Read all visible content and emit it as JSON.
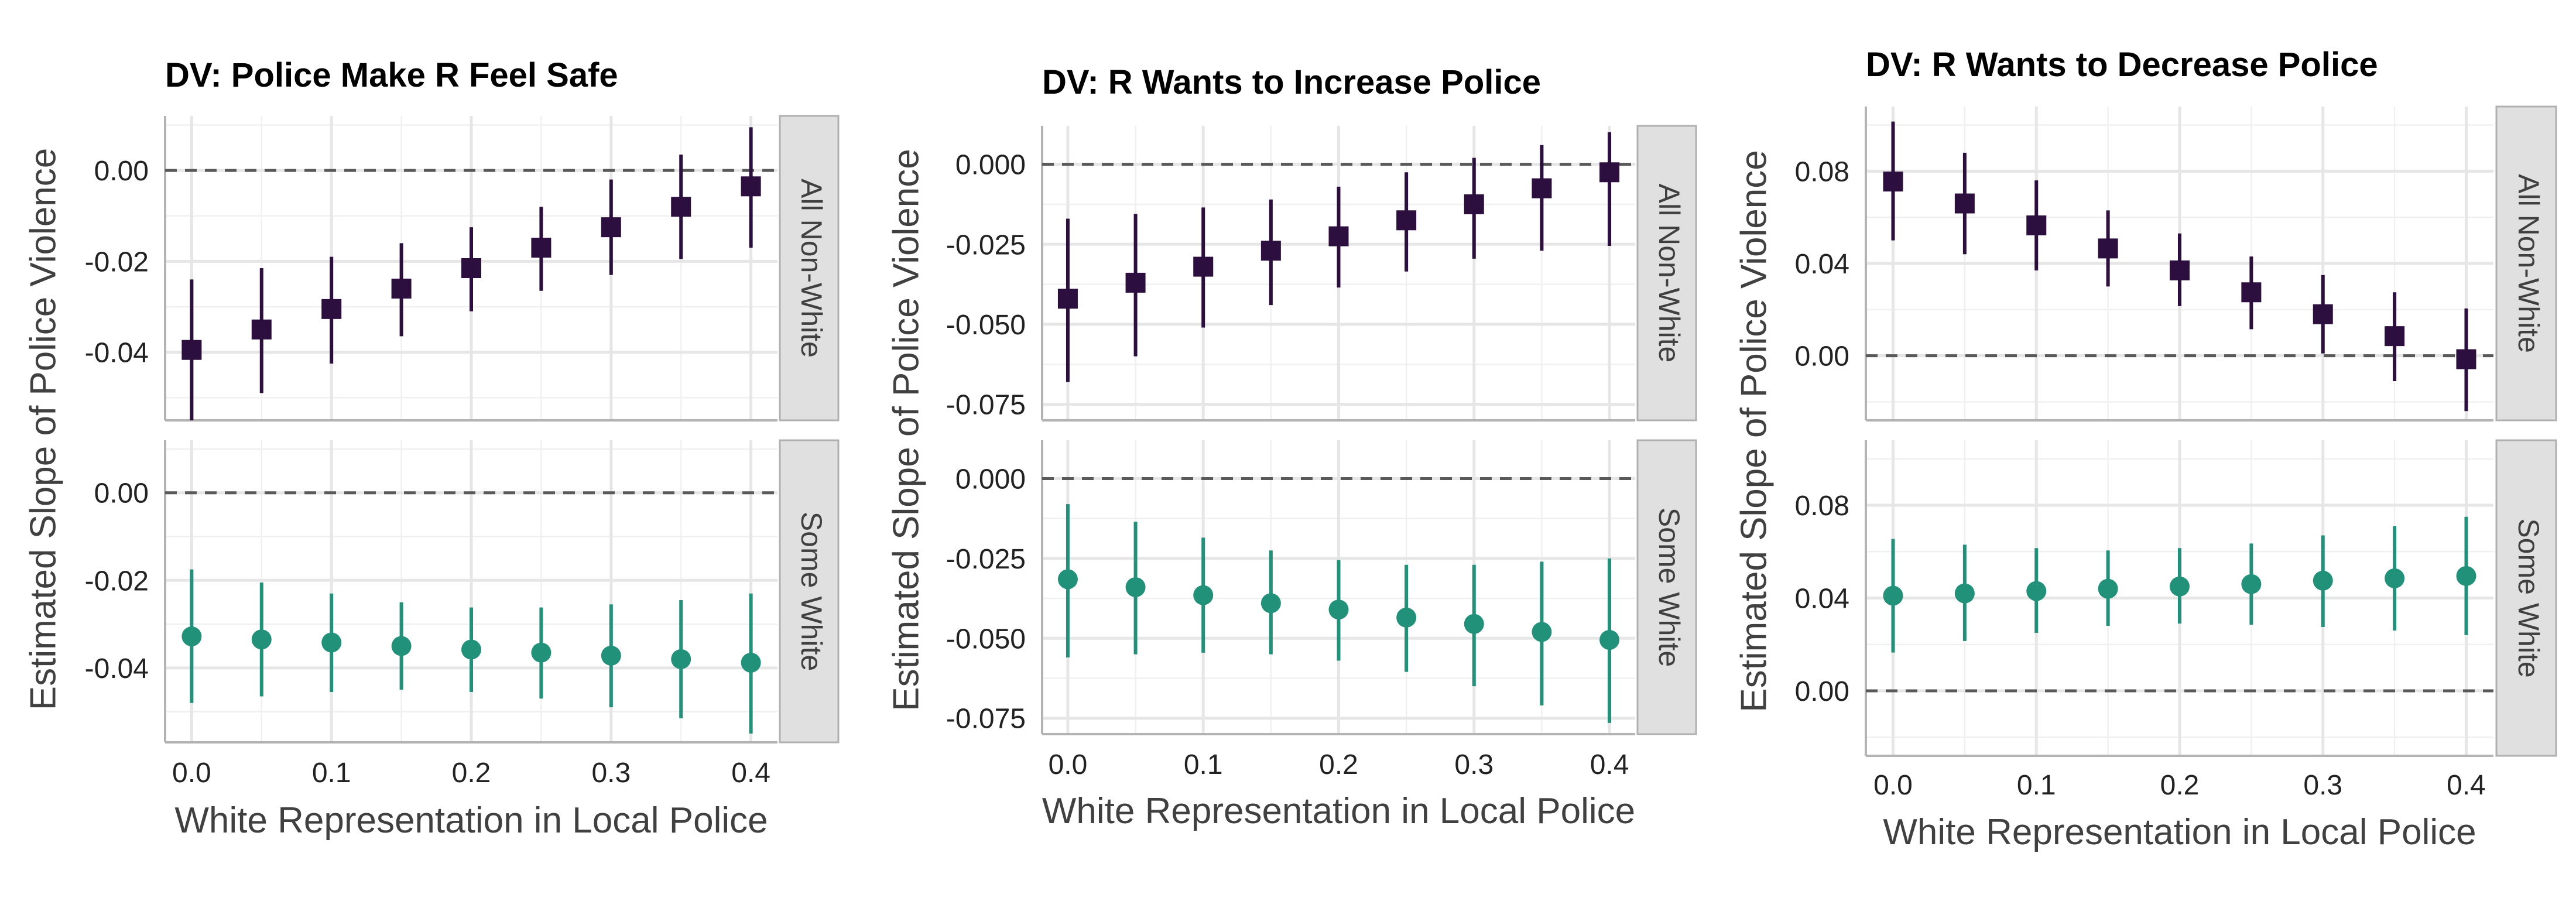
{
  "chart_data": [
    {
      "type": "scatter",
      "title": "DV: Police Make R Feel Safe",
      "xlabel": "White Representation in Local Police",
      "ylabel": "Estimated Slope of Police Violence",
      "x": [
        0.0,
        0.05,
        0.1,
        0.15,
        0.2,
        0.25,
        0.3,
        0.35,
        0.4
      ],
      "x_ticks": [
        "0.0",
        "0.1",
        "0.2",
        "0.3",
        "0.4"
      ],
      "reference_line": 0,
      "grid": true,
      "facets": [
        {
          "strip": "All Non-White",
          "marker": "square",
          "color": "#2d0f3f",
          "y_ticks": [
            "0.00",
            "-0.02",
            "-0.04"
          ],
          "ylim": [
            -0.055,
            0.012
          ],
          "values": [
            -0.0395,
            -0.035,
            -0.0305,
            -0.026,
            -0.0215,
            -0.017,
            -0.0125,
            -0.008,
            -0.0035
          ],
          "lower": [
            -0.055,
            -0.049,
            -0.0425,
            -0.0365,
            -0.031,
            -0.0265,
            -0.023,
            -0.0195,
            -0.017
          ],
          "upper": [
            -0.024,
            -0.0215,
            -0.019,
            -0.016,
            -0.0125,
            -0.008,
            -0.002,
            0.0035,
            0.0095
          ]
        },
        {
          "strip": "Some White",
          "marker": "circle",
          "color": "#21917a",
          "y_ticks": [
            "0.00",
            "-0.02",
            "-0.04"
          ],
          "ylim": [
            -0.057,
            0.012
          ],
          "values": [
            -0.0328,
            -0.0335,
            -0.0342,
            -0.035,
            -0.0358,
            -0.0365,
            -0.0372,
            -0.038,
            -0.0388
          ],
          "lower": [
            -0.048,
            -0.0465,
            -0.0455,
            -0.045,
            -0.0455,
            -0.047,
            -0.049,
            -0.0515,
            -0.055
          ],
          "upper": [
            -0.0175,
            -0.0205,
            -0.023,
            -0.025,
            -0.0262,
            -0.0262,
            -0.0255,
            -0.0245,
            -0.023
          ]
        }
      ]
    },
    {
      "type": "scatter",
      "title": "DV: R Wants to Increase Police",
      "xlabel": "White Representation in Local Police",
      "ylabel": "Estimated Slope of Police Violence",
      "x": [
        0.0,
        0.05,
        0.1,
        0.15,
        0.2,
        0.25,
        0.3,
        0.35,
        0.4
      ],
      "x_ticks": [
        "0.0",
        "0.1",
        "0.2",
        "0.3",
        "0.4"
      ],
      "reference_line": 0,
      "grid": true,
      "facets": [
        {
          "strip": "All Non-White",
          "marker": "square",
          "color": "#2d0f3f",
          "y_ticks": [
            "0.000",
            "-0.025",
            "-0.050",
            "-0.075"
          ],
          "ylim": [
            -0.08,
            0.012
          ],
          "values": [
            -0.042,
            -0.037,
            -0.032,
            -0.027,
            -0.0225,
            -0.0175,
            -0.0125,
            -0.0075,
            -0.0025
          ],
          "lower": [
            -0.068,
            -0.06,
            -0.051,
            -0.044,
            -0.0385,
            -0.0335,
            -0.0295,
            -0.027,
            -0.0255
          ],
          "upper": [
            -0.017,
            -0.0155,
            -0.0135,
            -0.011,
            -0.007,
            -0.0025,
            0.002,
            0.006,
            0.01
          ]
        },
        {
          "strip": "Some White",
          "marker": "circle",
          "color": "#21917a",
          "y_ticks": [
            "0.000",
            "-0.025",
            "-0.050",
            "-0.075"
          ],
          "ylim": [
            -0.08,
            0.012
          ],
          "values": [
            -0.0315,
            -0.034,
            -0.0365,
            -0.039,
            -0.041,
            -0.0435,
            -0.0455,
            -0.048,
            -0.0505
          ],
          "lower": [
            -0.056,
            -0.055,
            -0.0545,
            -0.055,
            -0.057,
            -0.0605,
            -0.065,
            -0.071,
            -0.0765
          ],
          "upper": [
            -0.008,
            -0.0135,
            -0.0185,
            -0.0225,
            -0.0255,
            -0.027,
            -0.027,
            -0.026,
            -0.025
          ]
        }
      ]
    },
    {
      "type": "scatter",
      "title": "DV: R Wants to Decrease Police",
      "xlabel": "White Representation in Local Police",
      "ylabel": "Estimated Slope of Police Violence",
      "x": [
        0.0,
        0.05,
        0.1,
        0.15,
        0.2,
        0.25,
        0.3,
        0.35,
        0.4
      ],
      "x_ticks": [
        "0.0",
        "0.1",
        "0.2",
        "0.3",
        "0.4"
      ],
      "reference_line": 0,
      "grid": true,
      "facets": [
        {
          "strip": "All Non-White",
          "marker": "square",
          "color": "#2d0f3f",
          "y_ticks": [
            "0.08",
            "0.04",
            "0.00"
          ],
          "ylim": [
            -0.028,
            0.108
          ],
          "values": [
            0.0755,
            0.066,
            0.0565,
            0.0465,
            0.037,
            0.0275,
            0.018,
            0.0085,
            -0.0015
          ],
          "lower": [
            0.05,
            0.044,
            0.037,
            0.03,
            0.0215,
            0.0115,
            0.001,
            -0.011,
            -0.024
          ],
          "upper": [
            0.1015,
            0.088,
            0.076,
            0.063,
            0.053,
            0.043,
            0.035,
            0.0275,
            0.0205
          ]
        },
        {
          "strip": "Some White",
          "marker": "circle",
          "color": "#21917a",
          "y_ticks": [
            "0.08",
            "0.04",
            "0.00"
          ],
          "ylim": [
            -0.028,
            0.108
          ],
          "values": [
            0.041,
            0.042,
            0.043,
            0.044,
            0.045,
            0.046,
            0.0475,
            0.0485,
            0.0495
          ],
          "lower": [
            0.0165,
            0.0215,
            0.025,
            0.028,
            0.029,
            0.0285,
            0.0275,
            0.026,
            0.024
          ],
          "upper": [
            0.0655,
            0.063,
            0.0615,
            0.0605,
            0.0615,
            0.0635,
            0.067,
            0.071,
            0.075
          ]
        }
      ]
    }
  ]
}
